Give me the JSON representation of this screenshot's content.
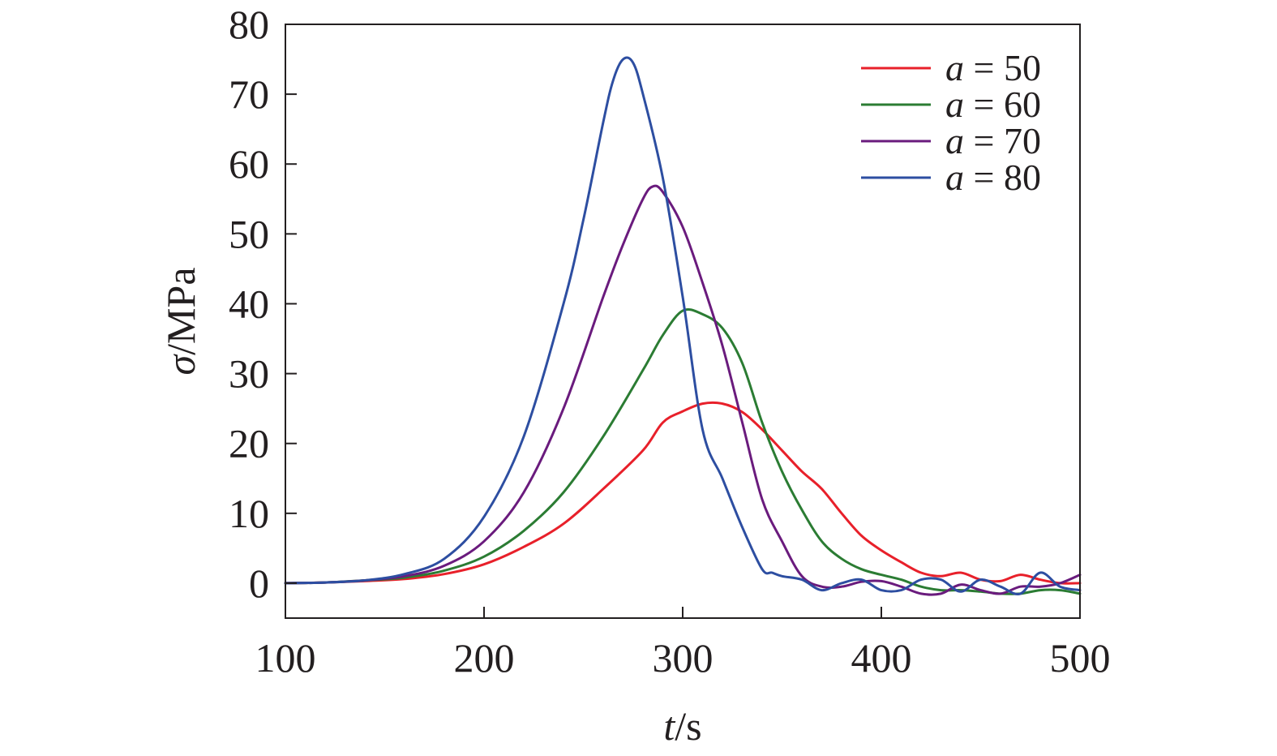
{
  "chart_data": {
    "type": "line",
    "xlabel_var": "t",
    "xlabel_unit": "/s",
    "ylabel_var": "σ",
    "ylabel_unit": "/MPa",
    "xlim": [
      100,
      500
    ],
    "ylim": [
      -5,
      80
    ],
    "xticks": [
      100,
      200,
      300,
      400,
      500
    ],
    "xtick_labels": [
      "100",
      "200",
      "300",
      "400",
      "500"
    ],
    "yticks": [
      0,
      10,
      20,
      30,
      40,
      50,
      60,
      70,
      80
    ],
    "ytick_labels": [
      "0",
      "10",
      "20",
      "30",
      "40",
      "50",
      "60",
      "70",
      "80"
    ],
    "grid": false,
    "legend_position": "top-right",
    "series": [
      {
        "name": "a = 50",
        "legend_var": "a",
        "legend_eq": " = 50",
        "color": "#e8202a",
        "x": [
          100,
          120,
          140,
          160,
          180,
          200,
          220,
          240,
          260,
          280,
          290,
          300,
          310,
          320,
          330,
          340,
          350,
          360,
          370,
          380,
          390,
          400,
          410,
          420,
          430,
          440,
          450,
          460,
          470,
          480,
          490,
          500
        ],
        "y": [
          0,
          0.1,
          0.3,
          0.6,
          1.3,
          2.7,
          5.2,
          8.5,
          13.5,
          19,
          23,
          24.6,
          25.7,
          25.7,
          24.5,
          22,
          19,
          16,
          13.5,
          10,
          6.8,
          4.7,
          3,
          1.5,
          1,
          1.5,
          0.5,
          0.3,
          1.2,
          0.5,
          0,
          0
        ]
      },
      {
        "name": "a = 60",
        "legend_var": "a",
        "legend_eq": " = 60",
        "color": "#2b7c33",
        "x": [
          100,
          120,
          140,
          160,
          180,
          200,
          220,
          240,
          260,
          280,
          290,
          300,
          310,
          320,
          330,
          340,
          350,
          360,
          370,
          380,
          390,
          400,
          410,
          420,
          430,
          440,
          450,
          460,
          470,
          480,
          490,
          500
        ],
        "y": [
          0,
          0.1,
          0.4,
          0.8,
          1.8,
          3.8,
          7.5,
          13,
          21,
          30.5,
          35.5,
          39,
          38.5,
          36.5,
          31.5,
          23,
          16,
          10.5,
          6,
          3.5,
          2,
          1.2,
          0.5,
          -0.5,
          -1,
          -1,
          -1.2,
          -1.5,
          -1.5,
          -1,
          -1,
          -1.5
        ]
      },
      {
        "name": "a = 70",
        "legend_var": "a",
        "legend_eq": " = 70",
        "color": "#6a1b7d",
        "x": [
          100,
          120,
          140,
          160,
          180,
          200,
          220,
          240,
          260,
          270,
          280,
          285,
          290,
          300,
          310,
          320,
          330,
          340,
          350,
          360,
          370,
          380,
          390,
          400,
          410,
          420,
          430,
          440,
          450,
          460,
          470,
          480,
          490,
          500
        ],
        "y": [
          0,
          0.1,
          0.4,
          1,
          2.5,
          6,
          13,
          25,
          41,
          48.5,
          55,
          56.8,
          56,
          51,
          43,
          34,
          23,
          12,
          6,
          1,
          -0.5,
          -0.5,
          0.2,
          0.3,
          -0.5,
          -1.5,
          -1.5,
          -0.2,
          -1,
          -1.5,
          -0.5,
          -0.5,
          0,
          1.2
        ]
      },
      {
        "name": "a = 80",
        "legend_var": "a",
        "legend_eq": " = 80",
        "color": "#2d4ea1",
        "x": [
          100,
          120,
          140,
          160,
          180,
          200,
          220,
          240,
          250,
          260,
          265,
          270,
          275,
          280,
          290,
          300,
          310,
          320,
          330,
          340,
          345,
          350,
          360,
          370,
          380,
          390,
          400,
          410,
          420,
          430,
          440,
          450,
          460,
          470,
          480,
          490,
          500
        ],
        "y": [
          0,
          0.1,
          0.4,
          1.3,
          3.5,
          9.5,
          21,
          40,
          52,
          66,
          72,
          75,
          74.5,
          70,
          58,
          41,
          22,
          15,
          8,
          2,
          1.5,
          1,
          0.5,
          -1,
          0,
          0.5,
          -1,
          -1,
          0.5,
          0.5,
          -1.2,
          0.5,
          -0.5,
          -1.5,
          1.5,
          -0.5,
          -1
        ]
      }
    ]
  }
}
